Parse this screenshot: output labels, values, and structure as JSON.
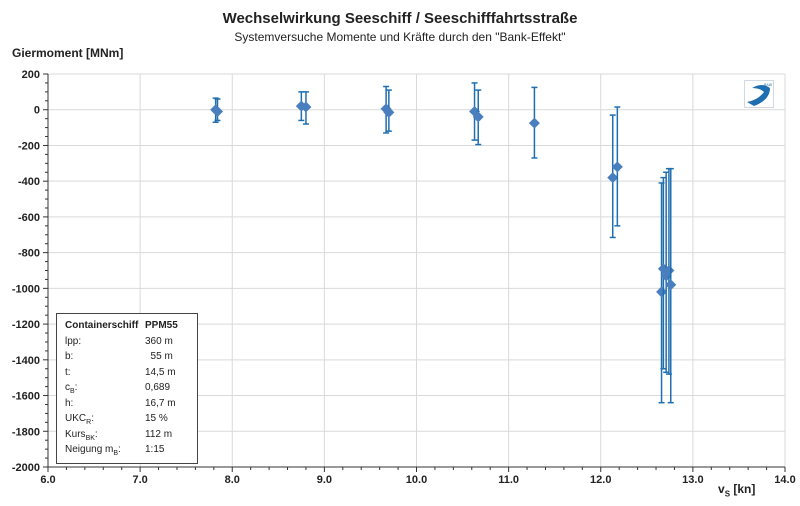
{
  "chart_data": {
    "type": "scatter",
    "title": "Wechselwirkung  Seeschiff  / Seeschifffahrtsstraße",
    "subtitle": "Systemversuche Momente und Kräfte durch den \"Bank-Effekt\"",
    "ylabel": "Giermoment [MNm]",
    "xlabel": "v_S [kn]",
    "xlabel_main": "v",
    "xlabel_sub": "S",
    "xlabel_unit": " [kn]",
    "xlim": [
      6.0,
      14.0
    ],
    "ylim": [
      -2000,
      200
    ],
    "xticks": [
      "6.0",
      "7.0",
      "8.0",
      "9.0",
      "10.0",
      "11.0",
      "12.0",
      "13.0",
      "14.0"
    ],
    "yticks": [
      "200",
      "0",
      "-200",
      "-400",
      "-600",
      "-800",
      "-1000",
      "-1200",
      "-1400",
      "-1600",
      "-1800",
      "-2000"
    ],
    "grid": true,
    "marker_color": "#4a7fbf",
    "errorbar_color": "#1f6fb0",
    "points": [
      {
        "x": 7.82,
        "y": 0,
        "ylo": -70,
        "yhi": 65
      },
      {
        "x": 7.84,
        "y": -10,
        "ylo": -60,
        "yhi": 60
      },
      {
        "x": 8.75,
        "y": 20,
        "ylo": -60,
        "yhi": 100
      },
      {
        "x": 8.8,
        "y": 15,
        "ylo": -80,
        "yhi": 100
      },
      {
        "x": 9.67,
        "y": 5,
        "ylo": -130,
        "yhi": 130
      },
      {
        "x": 9.7,
        "y": -15,
        "ylo": -120,
        "yhi": 110
      },
      {
        "x": 10.63,
        "y": -10,
        "ylo": -170,
        "yhi": 150
      },
      {
        "x": 10.67,
        "y": -40,
        "ylo": -195,
        "yhi": 110
      },
      {
        "x": 11.28,
        "y": -75,
        "ylo": -270,
        "yhi": 125
      },
      {
        "x": 12.13,
        "y": -380,
        "ylo": -715,
        "yhi": -30
      },
      {
        "x": 12.18,
        "y": -320,
        "ylo": -650,
        "yhi": 15
      },
      {
        "x": 12.66,
        "y": -1020,
        "ylo": -1640,
        "yhi": -410
      },
      {
        "x": 12.68,
        "y": -890,
        "ylo": -1450,
        "yhi": -380
      },
      {
        "x": 12.71,
        "y": -930,
        "ylo": -1470,
        "yhi": -350
      },
      {
        "x": 12.74,
        "y": -900,
        "ylo": -1480,
        "yhi": -330
      },
      {
        "x": 12.76,
        "y": -980,
        "ylo": -1640,
        "yhi": -330
      }
    ]
  },
  "info_box": {
    "rows": [
      {
        "key": "Containerschiff",
        "key_sub": "",
        "value": "PPM55",
        "head": true
      },
      {
        "key": "lpp:",
        "key_sub": "",
        "value": "360 m"
      },
      {
        "key": "b:",
        "key_sub": "",
        "value": "  55 m"
      },
      {
        "key": "t:",
        "key_sub": "",
        "value": "14,5 m"
      },
      {
        "key": "c",
        "key_sub": "B",
        "key_after": ":",
        "value": "0,689"
      },
      {
        "key": "h:",
        "key_sub": "",
        "value": "16,7 m"
      },
      {
        "key": "UKC",
        "key_sub": "R",
        "key_after": ":",
        "value": "15 %"
      },
      {
        "key": "Kurs",
        "key_sub": "BK",
        "key_after": ":",
        "value": "112 m"
      },
      {
        "key": "Neigung m",
        "key_sub": "B",
        "key_after": ":",
        "value": "1:15"
      }
    ]
  },
  "logo": {
    "text": "BAW",
    "icon": "baw-logo-icon"
  }
}
